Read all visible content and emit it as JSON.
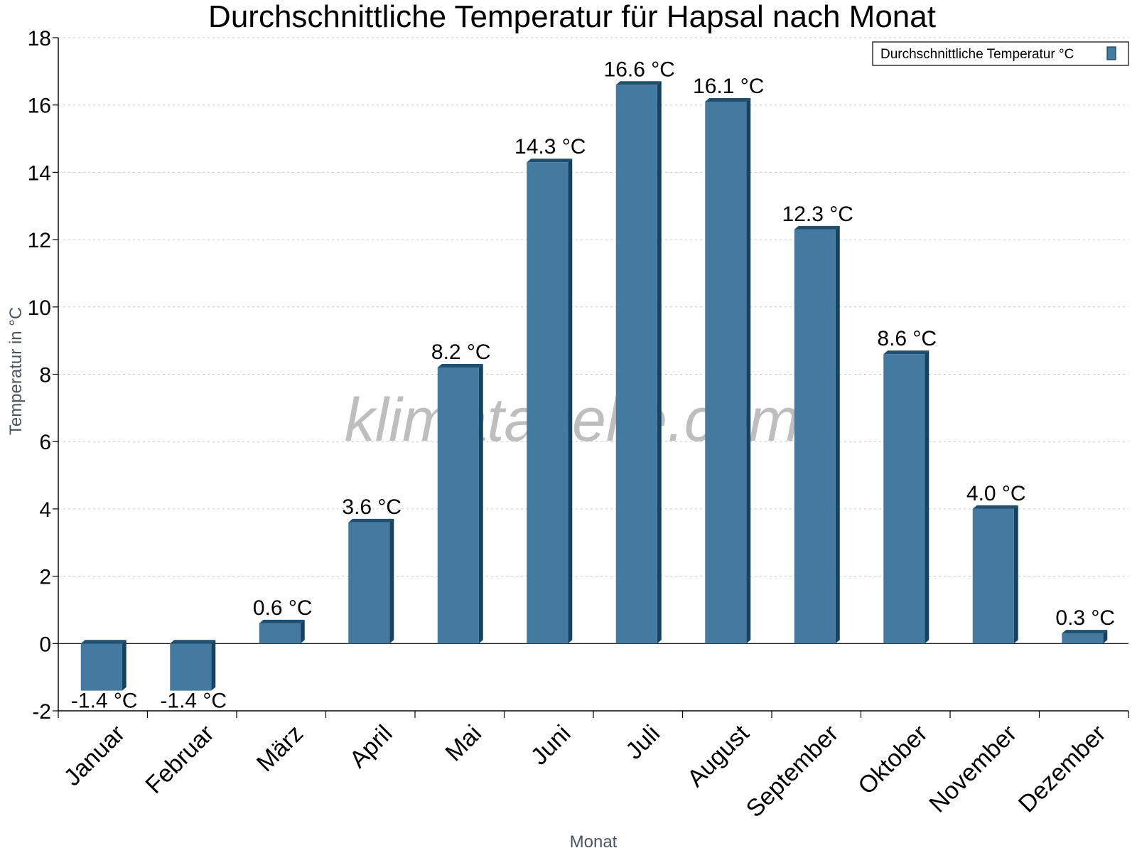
{
  "watermark": "klimatabelle.com",
  "colors": {
    "bar_face": "#4479a0",
    "bar_top": "#1f4e6e",
    "bar_side": "#16435f",
    "grid": "#c8c8c8"
  },
  "chart_data": {
    "type": "bar",
    "title": "Durchschnittliche Temperatur für Hapsal nach Monat",
    "xlabel": "Monat",
    "ylabel": "Temperatur in °C",
    "ylim": [
      -2,
      18
    ],
    "yticks": [
      -2,
      0,
      2,
      4,
      6,
      8,
      10,
      12,
      14,
      16,
      18
    ],
    "grid": true,
    "legend_position": "top-right",
    "categories": [
      "Januar",
      "Februar",
      "März",
      "April",
      "Mai",
      "Juni",
      "Juli",
      "August",
      "September",
      "Oktober",
      "November",
      "Dezember"
    ],
    "series": [
      {
        "name": "Durchschnittliche Temperatur °C",
        "values": [
          -1.4,
          -1.4,
          0.6,
          3.6,
          8.2,
          14.3,
          16.6,
          16.1,
          12.3,
          8.6,
          4.0,
          0.3
        ],
        "labels": [
          "-1.4 °C",
          "-1.4 °C",
          "0.6 °C",
          "3.6 °C",
          "8.2 °C",
          "14.3 °C",
          "16.6 °C",
          "16.1 °C",
          "12.3 °C",
          "8.6 °C",
          "4.0 °C",
          "0.3 °C"
        ]
      }
    ]
  }
}
